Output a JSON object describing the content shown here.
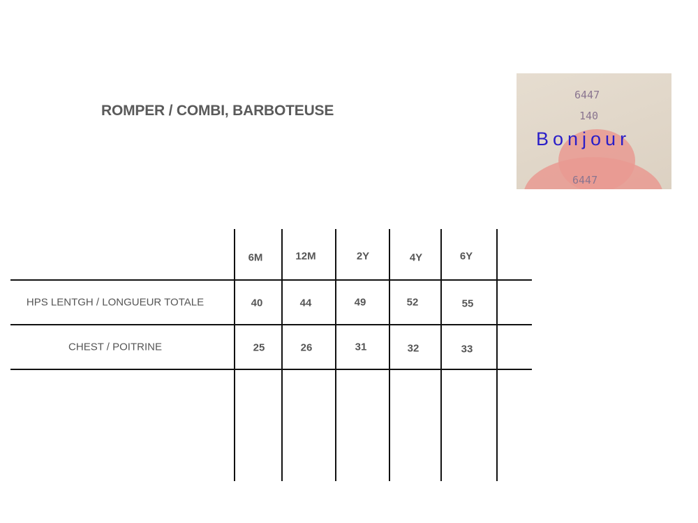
{
  "title": "ROMPER / COMBI, BARBOTEUSE",
  "photo": {
    "stamp_top": "6447",
    "stamp_mid": "140",
    "stamp_bottom": "6447",
    "caption": "Bonjour"
  },
  "table": {
    "columns": [
      "6M",
      "12M",
      "2Y",
      "4Y",
      "6Y"
    ],
    "rows": [
      {
        "label": "HPS LENTGH / LONGUEUR TOTALE",
        "values": [
          "40",
          "44",
          "49",
          "52",
          "55"
        ]
      },
      {
        "label": "CHEST / POITRINE",
        "values": [
          "25",
          "26",
          "31",
          "32",
          "33"
        ]
      }
    ]
  }
}
